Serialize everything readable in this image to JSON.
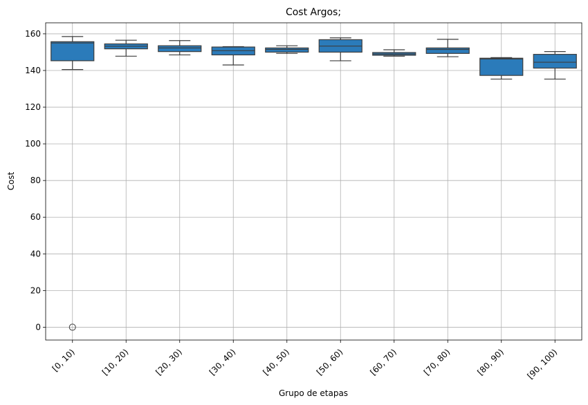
{
  "chart_data": {
    "type": "box",
    "title": "Cost Argos;",
    "xlabel": "Grupo de etapas",
    "ylabel": "Cost",
    "ylim": [
      -7,
      166
    ],
    "yticks": [
      0,
      20,
      40,
      60,
      80,
      100,
      120,
      140,
      160
    ],
    "grid": true,
    "color": "#2b7bba",
    "categories": [
      "[0, 10)",
      "[10, 20)",
      "[20, 30)",
      "[30, 40)",
      "[40, 50)",
      "[50, 60)",
      "[60, 70)",
      "[70, 80)",
      "[80, 90)",
      "[90, 100)"
    ],
    "boxes": [
      {
        "whisker_low": 140.5,
        "q1": 145.3,
        "median": 155.0,
        "q3": 155.7,
        "whisker_high": 158.5,
        "outliers": [
          0
        ]
      },
      {
        "whisker_low": 147.8,
        "q1": 151.8,
        "median": 153.2,
        "q3": 154.5,
        "whisker_high": 156.5,
        "outliers": []
      },
      {
        "whisker_low": 148.5,
        "q1": 150.3,
        "median": 152.3,
        "q3": 153.5,
        "whisker_high": 156.3,
        "outliers": []
      },
      {
        "whisker_low": 143.0,
        "q1": 148.5,
        "median": 150.8,
        "q3": 152.8,
        "whisker_high": 153.0,
        "outliers": []
      },
      {
        "whisker_low": 149.3,
        "q1": 150.0,
        "median": 151.5,
        "q3": 152.3,
        "whisker_high": 153.5,
        "outliers": []
      },
      {
        "whisker_low": 145.3,
        "q1": 150.0,
        "median": 153.3,
        "q3": 156.8,
        "whisker_high": 157.8,
        "outliers": []
      },
      {
        "whisker_low": 147.8,
        "q1": 148.3,
        "median": 149.0,
        "q3": 149.8,
        "whisker_high": 151.3,
        "outliers": []
      },
      {
        "whisker_low": 147.5,
        "q1": 149.3,
        "median": 151.5,
        "q3": 152.3,
        "whisker_high": 157.0,
        "outliers": []
      },
      {
        "whisker_low": 135.3,
        "q1": 137.3,
        "median": 146.3,
        "q3": 146.7,
        "whisker_high": 147.0,
        "outliers": []
      },
      {
        "whisker_low": 135.3,
        "q1": 141.3,
        "median": 144.5,
        "q3": 148.8,
        "whisker_high": 150.3,
        "outliers": []
      }
    ]
  }
}
